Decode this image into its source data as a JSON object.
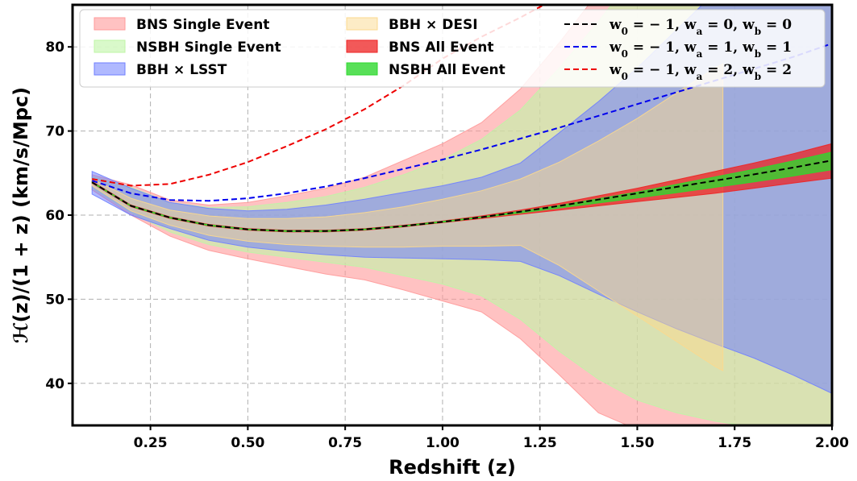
{
  "chart_data": {
    "type": "area",
    "title": "",
    "xlabel": "Redshift (z)",
    "ylabel": "ℋ(z)/(1 + z) (km/s/Mpc)",
    "xlim": [
      0.05,
      2.0
    ],
    "ylim": [
      35,
      85
    ],
    "xticks": [
      0.25,
      0.5,
      0.75,
      1.0,
      1.25,
      1.5,
      1.75,
      2.0
    ],
    "xtick_labels": [
      "0.25",
      "0.50",
      "0.75",
      "1.00",
      "1.25",
      "1.50",
      "1.75",
      "2.00"
    ],
    "yticks": [
      40,
      50,
      60,
      70,
      80
    ],
    "ytick_labels": [
      "40",
      "50",
      "60",
      "70",
      "80"
    ],
    "grid": true,
    "legend_position": "top",
    "bands": [
      {
        "name": "BNS Single Event",
        "color": "#ff9999",
        "x": [
          0.1,
          0.2,
          0.3,
          0.4,
          0.5,
          0.6,
          0.7,
          0.8,
          0.9,
          1.0,
          1.1,
          1.2,
          1.3,
          1.4,
          1.5,
          1.6,
          1.7,
          1.8,
          1.9,
          2.0
        ],
        "upper": [
          64.8,
          63.6,
          61.8,
          61.2,
          61.5,
          62.3,
          63.2,
          64.5,
          66.5,
          68.5,
          71.0,
          75.0,
          80.5,
          86.5,
          92.0,
          98.0,
          104.0,
          110.0,
          116.0,
          122.0
        ],
        "lower": [
          63.0,
          60.0,
          57.5,
          55.8,
          54.8,
          53.9,
          53.0,
          52.3,
          51.1,
          49.8,
          48.5,
          45.3,
          41.0,
          36.5,
          34.5,
          33.5,
          32.5,
          31.5,
          30.5,
          29.5
        ]
      },
      {
        "name": "NSBH Single Event",
        "color": "#bff5a6",
        "x": [
          0.1,
          0.2,
          0.3,
          0.4,
          0.5,
          0.6,
          0.7,
          0.8,
          0.9,
          1.0,
          1.1,
          1.2,
          1.3,
          1.4,
          1.5,
          1.6,
          1.7,
          1.8,
          1.9,
          2.0
        ],
        "upper": [
          64.6,
          63.3,
          61.5,
          60.9,
          61.0,
          61.5,
          62.2,
          63.3,
          64.8,
          66.6,
          69.0,
          72.5,
          77.5,
          83.0,
          89.0,
          95.0,
          101.0,
          107.0,
          113.0,
          119.0
        ],
        "lower": [
          63.2,
          60.3,
          58.0,
          56.5,
          55.6,
          55.0,
          54.4,
          53.8,
          52.8,
          51.8,
          50.4,
          47.6,
          43.8,
          40.5,
          38.0,
          36.5,
          35.5,
          34.8,
          34.0,
          33.5
        ]
      },
      {
        "name": "BBH × LSST",
        "color": "#6f7fff",
        "x": [
          0.1,
          0.2,
          0.3,
          0.4,
          0.5,
          0.6,
          0.7,
          0.8,
          0.9,
          1.0,
          1.1,
          1.2,
          1.3,
          1.4,
          1.5,
          1.6,
          1.7,
          1.8,
          1.9,
          2.0
        ],
        "upper": [
          65.2,
          63.2,
          61.5,
          60.8,
          60.5,
          60.7,
          61.2,
          61.9,
          62.7,
          63.5,
          64.5,
          66.2,
          69.8,
          73.5,
          77.5,
          82.0,
          86.5,
          91.0,
          96.0,
          101.0
        ],
        "lower": [
          62.5,
          60.0,
          58.4,
          57.0,
          56.2,
          55.7,
          55.3,
          55.0,
          54.9,
          54.8,
          54.7,
          54.5,
          52.8,
          50.6,
          48.5,
          46.5,
          44.7,
          43.0,
          41.0,
          38.8
        ]
      },
      {
        "name": "BBH × DESI",
        "color": "#fcd98d",
        "x": [
          0.1,
          0.2,
          0.3,
          0.4,
          0.5,
          0.6,
          0.7,
          0.8,
          0.9,
          1.0,
          1.1,
          1.2,
          1.3,
          1.4,
          1.5,
          1.6,
          1.7,
          1.72
        ],
        "upper": [
          64.3,
          62.0,
          60.6,
          59.9,
          59.6,
          59.6,
          59.8,
          60.3,
          61.0,
          61.9,
          62.9,
          64.3,
          66.3,
          68.8,
          71.5,
          74.5,
          77.5,
          78.0
        ],
        "lower": [
          63.5,
          60.5,
          58.8,
          57.6,
          56.9,
          56.5,
          56.3,
          56.2,
          56.2,
          56.3,
          56.3,
          56.4,
          54.0,
          51.0,
          48.0,
          45.0,
          42.0,
          41.5
        ]
      },
      {
        "name": "BNS All Event",
        "color": "#ee2222",
        "x": [
          0.1,
          0.2,
          0.3,
          0.4,
          0.5,
          0.6,
          0.7,
          0.8,
          0.9,
          1.0,
          1.1,
          1.2,
          1.3,
          1.4,
          1.5,
          1.6,
          1.7,
          1.8,
          1.9,
          2.0
        ],
        "upper": [
          64.0,
          61.2,
          59.8,
          58.9,
          58.4,
          58.2,
          58.2,
          58.4,
          58.8,
          59.3,
          59.9,
          60.6,
          61.4,
          62.3,
          63.2,
          64.2,
          65.2,
          66.2,
          67.3,
          68.5
        ],
        "lower": [
          63.8,
          61.0,
          59.6,
          58.7,
          58.2,
          58.0,
          58.0,
          58.2,
          58.6,
          59.1,
          59.6,
          60.1,
          60.6,
          61.1,
          61.6,
          62.1,
          62.6,
          63.2,
          63.8,
          64.4
        ]
      },
      {
        "name": "NSBH All Event",
        "color": "#2ed82e",
        "x": [
          0.1,
          0.2,
          0.3,
          0.4,
          0.5,
          0.6,
          0.7,
          0.8,
          0.9,
          1.0,
          1.1,
          1.2,
          1.3,
          1.4,
          1.5,
          1.6,
          1.7,
          1.8,
          1.9,
          2.0
        ],
        "upper": [
          63.95,
          61.15,
          59.75,
          58.85,
          58.35,
          58.15,
          58.15,
          58.35,
          58.75,
          59.25,
          59.8,
          60.45,
          61.15,
          61.95,
          62.75,
          63.65,
          64.55,
          65.45,
          66.45,
          67.5
        ],
        "lower": [
          63.85,
          61.05,
          59.65,
          58.75,
          58.25,
          58.05,
          58.05,
          58.25,
          58.65,
          59.15,
          59.7,
          60.25,
          60.85,
          61.45,
          62.05,
          62.65,
          63.3,
          63.95,
          64.65,
          65.4
        ]
      }
    ],
    "lines": [
      {
        "label_prefix": "w",
        "label_parts": [
          {
            "text": "w",
            "sub": "0",
            "after": " = − 1, "
          },
          {
            "text": "w",
            "sub": "a",
            "after": " = 0, "
          },
          {
            "text": "w",
            "sub": "b",
            "after": " = 0"
          }
        ],
        "color": "#000000",
        "x": [
          0.1,
          0.2,
          0.3,
          0.4,
          0.5,
          0.6,
          0.7,
          0.8,
          0.9,
          1.0,
          1.1,
          1.2,
          1.3,
          1.4,
          1.5,
          1.6,
          1.7,
          1.8,
          1.9,
          2.0
        ],
        "y": [
          63.9,
          61.1,
          59.7,
          58.8,
          58.3,
          58.1,
          58.1,
          58.3,
          58.7,
          59.2,
          59.75,
          60.4,
          61.1,
          61.85,
          62.6,
          63.35,
          64.1,
          64.85,
          65.65,
          66.5
        ]
      },
      {
        "label_prefix": "w",
        "label_parts": [
          {
            "text": "w",
            "sub": "0",
            "after": " = − 1, "
          },
          {
            "text": "w",
            "sub": "a",
            "after": " = 1, "
          },
          {
            "text": "w",
            "sub": "b",
            "after": " = 1"
          }
        ],
        "color": "#0000ee",
        "x": [
          0.1,
          0.2,
          0.3,
          0.4,
          0.5,
          0.6,
          0.7,
          0.8,
          0.9,
          1.0,
          1.1,
          1.2,
          1.3,
          1.4,
          1.5,
          1.6,
          1.7,
          1.8,
          1.9,
          2.0
        ],
        "y": [
          64.1,
          62.6,
          61.8,
          61.7,
          62.0,
          62.6,
          63.4,
          64.4,
          65.5,
          66.6,
          67.8,
          69.1,
          70.4,
          71.8,
          73.2,
          74.6,
          76.0,
          77.4,
          78.8,
          80.4
        ]
      },
      {
        "label_prefix": "w",
        "label_parts": [
          {
            "text": "w",
            "sub": "0",
            "after": " = − 1, "
          },
          {
            "text": "w",
            "sub": "a",
            "after": " = 2, "
          },
          {
            "text": "w",
            "sub": "b",
            "after": " = 2"
          }
        ],
        "color": "#ee0000",
        "x": [
          0.1,
          0.2,
          0.3,
          0.4,
          0.5,
          0.6,
          0.7,
          0.8,
          0.9,
          1.0,
          1.1,
          1.2,
          1.3
        ],
        "y": [
          64.3,
          63.5,
          63.7,
          64.8,
          66.3,
          68.2,
          70.2,
          72.6,
          75.4,
          78.6,
          81.2,
          83.5,
          86.0
        ]
      }
    ]
  }
}
